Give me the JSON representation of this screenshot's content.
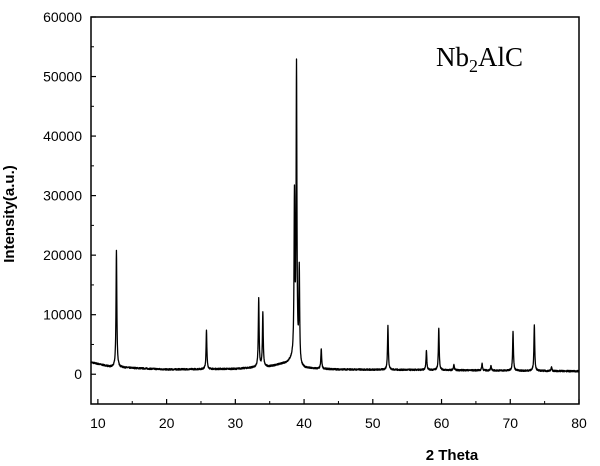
{
  "chart_data": {
    "type": "line",
    "title": "",
    "xlabel": "2 Theta",
    "ylabel": "Intensity(a.u.)",
    "xlim": [
      9,
      80
    ],
    "ylim": [
      -5000,
      60000
    ],
    "x_ticks": [
      10,
      20,
      30,
      40,
      50,
      60,
      70,
      80
    ],
    "x_tick_labels": [
      "10",
      "20",
      "30",
      "40",
      "50",
      "60",
      "70",
      "80"
    ],
    "y_ticks": [
      0,
      10000,
      20000,
      30000,
      40000,
      50000,
      60000
    ],
    "y_tick_labels": [
      "0",
      "10000",
      "20000",
      "30000",
      "40000",
      "50000",
      "60000"
    ],
    "grid": false,
    "annotation": {
      "main": "Nb",
      "sub": "2",
      "rest": "AlC",
      "position": "top-right"
    },
    "series": [
      {
        "color": "#000000",
        "baseline": [
          [
            9,
            2000
          ],
          [
            12,
            1200
          ],
          [
            20,
            800
          ],
          [
            30,
            900
          ],
          [
            35,
            1300
          ],
          [
            37.5,
            1900
          ],
          [
            38.4,
            2500
          ],
          [
            39.5,
            1000
          ],
          [
            45,
            800
          ],
          [
            60,
            700
          ],
          [
            70,
            600
          ],
          [
            80,
            500
          ]
        ],
        "peaks": [
          {
            "x": 12.7,
            "y": 20800
          },
          {
            "x": 25.8,
            "y": 7300
          },
          {
            "x": 33.4,
            "y": 12700
          },
          {
            "x": 34.0,
            "y": 10300
          },
          {
            "x": 38.6,
            "y": 29000
          },
          {
            "x": 38.9,
            "y": 51000
          },
          {
            "x": 39.3,
            "y": 17000
          },
          {
            "x": 42.5,
            "y": 4200
          },
          {
            "x": 52.2,
            "y": 8100
          },
          {
            "x": 57.8,
            "y": 4000
          },
          {
            "x": 59.6,
            "y": 7800
          },
          {
            "x": 61.8,
            "y": 1600
          },
          {
            "x": 65.9,
            "y": 1800
          },
          {
            "x": 67.2,
            "y": 1400
          },
          {
            "x": 70.4,
            "y": 7200
          },
          {
            "x": 73.5,
            "y": 8300
          },
          {
            "x": 76.0,
            "y": 1200
          }
        ]
      }
    ]
  }
}
